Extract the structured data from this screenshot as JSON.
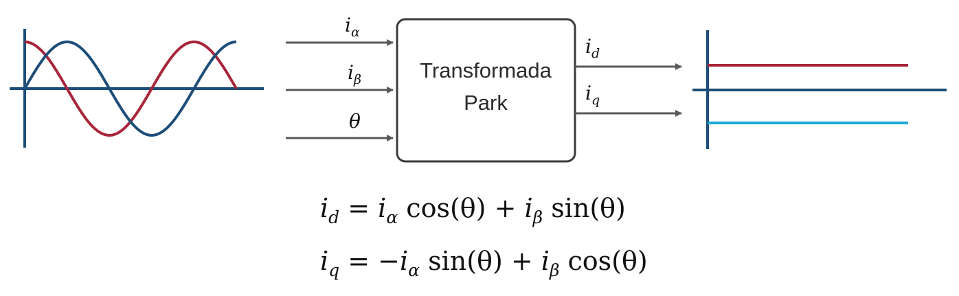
{
  "block": {
    "line1": "Transformada",
    "line2": "Park"
  },
  "inputs": [
    {
      "base": "i",
      "sub": "α"
    },
    {
      "base": "i",
      "sub": "β"
    },
    {
      "base": "θ",
      "sub": ""
    }
  ],
  "outputs": [
    {
      "base": "i",
      "sub": "d"
    },
    {
      "base": "i",
      "sub": "q"
    }
  ],
  "equations": [
    {
      "lhs": "i",
      "lhs_sub": "d",
      "t1": " = ",
      "t2": "i",
      "t2_sub": "α",
      "t3": " cos(θ) + ",
      "t4": "i",
      "t4_sub": "β",
      "t5": " sin(θ)"
    },
    {
      "lhs": "i",
      "lhs_sub": "q",
      "t1": " = −",
      "t2": "i",
      "t2_sub": "α",
      "t3": " sin(θ) + ",
      "t4": "i",
      "t4_sub": "β",
      "t5": " cos(θ)"
    }
  ],
  "colors": {
    "axis": "#1d4e79",
    "wave_red": "#a8253a",
    "wave_blue": "#1d4e79",
    "out_red": "#a8253a",
    "out_cyan": "#1aa9d8",
    "arrow": "#595959",
    "box_border": "#3a3a3a"
  }
}
